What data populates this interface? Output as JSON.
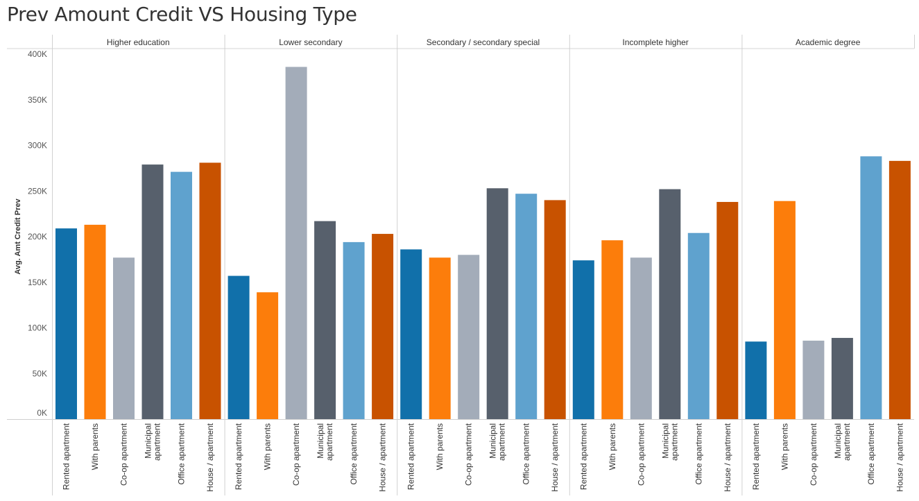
{
  "title": "Prev Amount Credit VS Housing Type",
  "colors": {
    "Rented apartment": "#1170aa",
    "With parents": "#fc7d0b",
    "Co-op apartment": "#a3acb9",
    "Municipal apartment": "#57606c",
    "Office apartment": "#5fa2ce",
    "House / apartment": "#c85200"
  },
  "chart_data": {
    "type": "bar",
    "ylabel": "Avg. Amt Credit Prev",
    "ylim": [
      0,
      400000
    ],
    "yticks": [
      0,
      50000,
      100000,
      150000,
      200000,
      250000,
      300000,
      350000,
      400000
    ],
    "ytick_labels": [
      "0K",
      "50K",
      "100K",
      "150K",
      "200K",
      "250K",
      "300K",
      "350K",
      "400K"
    ],
    "categories": [
      "Rented apartment",
      "With parents",
      "Co-op apartment",
      "Municipal apartment",
      "Office apartment",
      "House / apartment"
    ],
    "category_labels": [
      [
        "Rented apartment"
      ],
      [
        "With parents"
      ],
      [
        "Co-op apartment"
      ],
      [
        "Municipal",
        "apartment"
      ],
      [
        "Office apartment"
      ],
      [
        "House / apartment"
      ]
    ],
    "panels": [
      {
        "name": "Higher education",
        "values": [
          209000,
          213000,
          177000,
          279000,
          271000,
          281000
        ]
      },
      {
        "name": "Lower secondary",
        "values": [
          157000,
          139000,
          386000,
          217000,
          194000,
          203000
        ]
      },
      {
        "name": "Secondary / secondary special",
        "values": [
          186000,
          177000,
          180000,
          253000,
          247000,
          240000
        ]
      },
      {
        "name": "Incomplete higher",
        "values": [
          174000,
          196000,
          177000,
          252000,
          204000,
          238000
        ]
      },
      {
        "name": "Academic degree",
        "values": [
          85000,
          239000,
          86000,
          89000,
          288000,
          283000
        ]
      }
    ],
    "grid": false
  }
}
